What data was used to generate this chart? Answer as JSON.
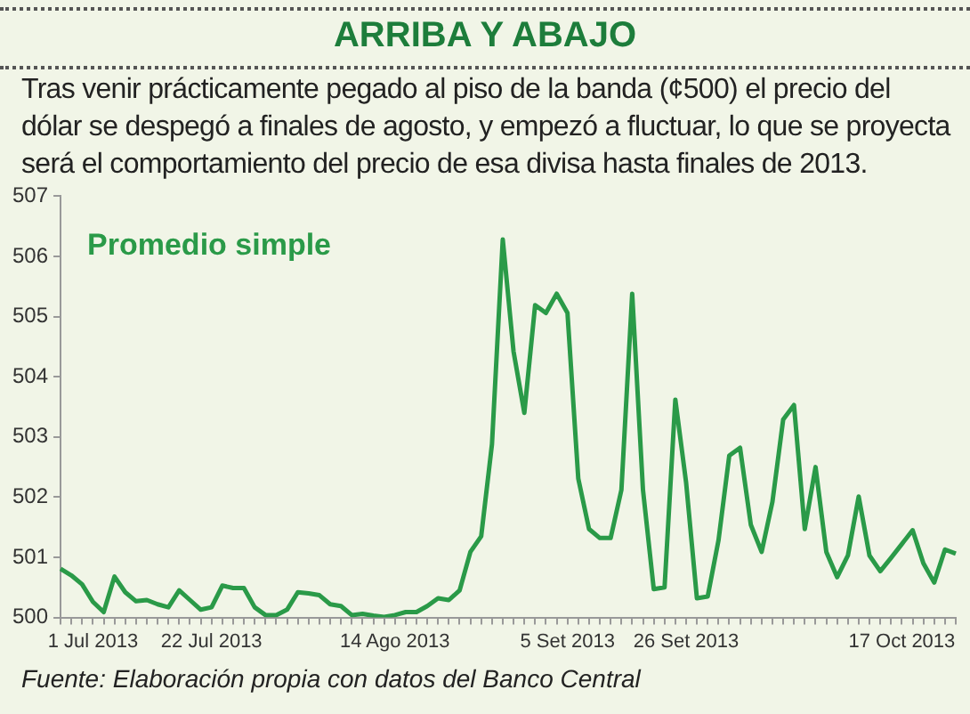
{
  "chart_data": {
    "type": "line",
    "title": "ARRIBA Y ABAJO",
    "subtitle": "Tras venir prácticamente pegado al piso de la banda (¢500) el precio del dólar se despegó a finales de agosto, y empezó a fluctuar, lo que se proyecta será el comportamiento del precio de esa divisa hasta finales de 2013.",
    "categories": [
      null,
      null,
      null,
      "1 Jul 2013",
      null,
      null,
      null,
      null,
      null,
      null,
      null,
      null,
      null,
      null,
      "22 Jul 2013",
      null,
      null,
      null,
      null,
      null,
      null,
      null,
      null,
      null,
      null,
      null,
      null,
      null,
      null,
      null,
      null,
      "14 Ago 2013",
      null,
      null,
      null,
      null,
      null,
      null,
      null,
      null,
      null,
      null,
      null,
      null,
      null,
      null,
      null,
      "5 Set 2013",
      null,
      null,
      null,
      null,
      null,
      null,
      null,
      null,
      null,
      null,
      "26 Set 2013",
      null,
      null,
      null,
      null,
      null,
      null,
      null,
      null,
      null,
      null,
      null,
      null,
      null,
      null,
      null,
      null,
      null,
      null,
      null,
      "17 Oct 2013",
      null,
      null,
      null,
      null,
      null
    ],
    "series": [
      {
        "name": "Promedio simple",
        "color": "#2a9a48",
        "values": [
          500.81,
          500.7,
          500.55,
          500.26,
          500.09,
          500.68,
          500.42,
          500.27,
          500.29,
          500.22,
          500.17,
          500.45,
          500.29,
          500.13,
          500.17,
          500.53,
          500.49,
          500.49,
          500.17,
          500.04,
          500.04,
          500.13,
          500.42,
          500.4,
          500.37,
          500.22,
          500.19,
          500.04,
          500.06,
          500.03,
          500.01,
          500.04,
          500.09,
          500.09,
          500.19,
          500.32,
          500.29,
          500.45,
          501.09,
          501.35,
          502.88,
          506.28,
          504.42,
          503.4,
          505.19,
          505.06,
          505.38,
          505.06,
          502.31,
          501.47,
          501.32,
          501.32,
          502.12,
          505.38,
          502.12,
          500.47,
          500.5,
          503.62,
          502.24,
          500.32,
          500.35,
          501.28,
          502.69,
          502.82,
          501.54,
          501.09,
          501.92,
          503.29,
          503.53,
          501.47,
          502.5,
          501.09,
          500.67,
          501.03,
          502.01,
          501.03,
          500.77,
          500.99,
          501.22,
          501.45,
          500.9,
          500.58,
          501.13,
          501.06
        ]
      }
    ],
    "ylim": [
      500,
      507
    ],
    "yticks": [
      500,
      501,
      502,
      503,
      504,
      505,
      506,
      507
    ],
    "annotations": [
      "Fuente: Elaboración propia con datos del Banco Central"
    ]
  }
}
